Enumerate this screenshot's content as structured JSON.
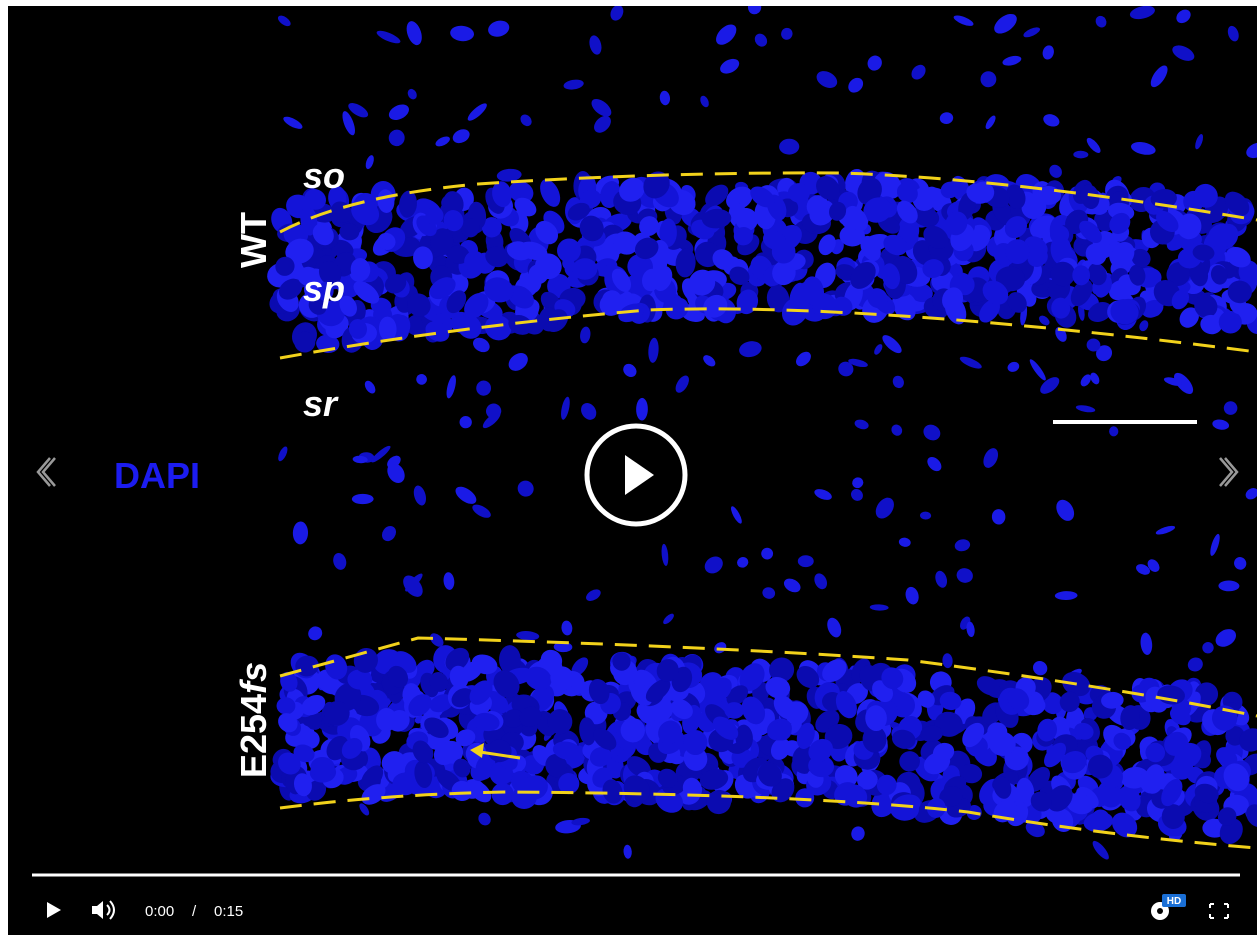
{
  "video": {
    "labels": {
      "top_layer": "so",
      "middle_layer": "sp",
      "bottom_layer": "sr",
      "top_group": "WT",
      "bottom_group_prefix": "E254",
      "bottom_group_suffix": "fs",
      "stain": "DAPI"
    },
    "controls": {
      "current_time": "0:00",
      "separator": "/",
      "duration": "0:15",
      "quality_badge": "HD"
    }
  }
}
